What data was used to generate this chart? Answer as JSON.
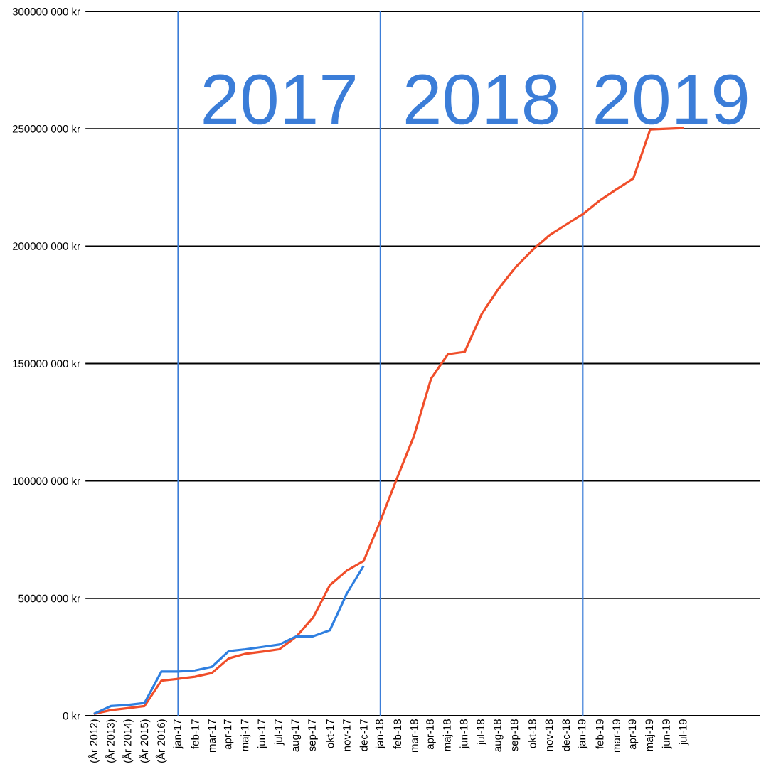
{
  "chart_data": {
    "type": "line",
    "categories": [
      "(År 2012)",
      "(År 2013)",
      "(År 2014)",
      "(År 2015)",
      "(År 2016)",
      "jan-17",
      "feb-17",
      "mar-17",
      "apr-17",
      "maj-17",
      "jun-17",
      "jul-17",
      "aug-17",
      "sep-17",
      "okt-17",
      "nov-17",
      "dec-17",
      "jan-18",
      "feb-18",
      "mar-18",
      "apr-18",
      "maj-18",
      "jun-18",
      "jul-18",
      "aug-18",
      "sep-18",
      "okt-18",
      "nov-18",
      "dec-18",
      "jan-19",
      "feb-19",
      "mar-19",
      "apr-19",
      "maj-19",
      "jun-19",
      "jul-19",
      null,
      null,
      null,
      null
    ],
    "series": [
      {
        "color": "#f04e2a",
        "values": [
          800000,
          2400000,
          3200000,
          4100000,
          14900000,
          15700000,
          16600000,
          18200000,
          24400000,
          26400000,
          27300000,
          28300000,
          33600000,
          41800000,
          55600000,
          61800000,
          65900000,
          83000000,
          101500000,
          119400000,
          143500000,
          154000000,
          155000000,
          171000000,
          181800000,
          190900000,
          198200000,
          204500000,
          209100000,
          213600000,
          219400000,
          224200000,
          228800000,
          249700000,
          250000000,
          250300000,
          null,
          null,
          null,
          null
        ]
      },
      {
        "color": "#2f7fe0",
        "values": [
          800000,
          4100000,
          4600000,
          5400000,
          18800000,
          18800000,
          19300000,
          20800000,
          27500000,
          28300000,
          29300000,
          30300000,
          33800000,
          33800000,
          36400000,
          52000000,
          63800000,
          null,
          null,
          null,
          null,
          null,
          null,
          null,
          null,
          null,
          null,
          null,
          null,
          null,
          null,
          null,
          null,
          null,
          null,
          null,
          null,
          null,
          null,
          null
        ]
      }
    ],
    "ylim": [
      0,
      300000000
    ],
    "yticks": [
      {
        "value": 0,
        "label": "0 kr"
      },
      {
        "value": 50000000,
        "label": "50000 000 kr"
      },
      {
        "value": 100000000,
        "label": "100000 000 kr"
      },
      {
        "value": 150000000,
        "label": "150000 000 kr"
      },
      {
        "value": 200000000,
        "label": "200000 000 kr"
      },
      {
        "value": 250000000,
        "label": "250000 000 kr"
      },
      {
        "value": 300000000,
        "label": "300000 000 kr"
      }
    ],
    "grid": "y",
    "ref_lines": [
      {
        "axis": "x",
        "value": "jan-17",
        "color": "#3b7dd8"
      },
      {
        "axis": "x",
        "value": "jan-18",
        "color": "#3b7dd8"
      },
      {
        "axis": "x",
        "value": "jan-19",
        "color": "#3b7dd8"
      }
    ],
    "annotations": [
      "2017",
      "2018",
      "2019"
    ]
  }
}
